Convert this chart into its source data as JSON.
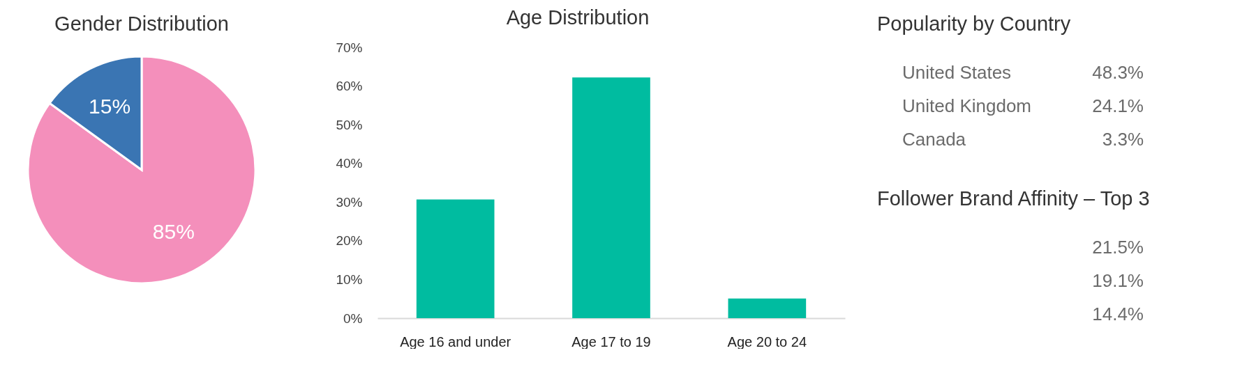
{
  "chart_data": [
    {
      "type": "pie",
      "title": "Gender Distribution",
      "categories": [
        null,
        null
      ],
      "values": [
        85,
        15
      ],
      "colors": [
        "#f48fbb",
        "#3a75b3"
      ],
      "value_labels": [
        "85%",
        "15%"
      ]
    },
    {
      "type": "bar",
      "title": "Age Distribution",
      "categories": [
        "Age 16 and under",
        "Age 17 to 19",
        "Age 20 to 24"
      ],
      "values": [
        30.7,
        62.2,
        5.1
      ],
      "color": "#00bca0",
      "ylim": [
        0,
        70
      ],
      "yticks": [
        {
          "value": 0,
          "label": "0%"
        },
        {
          "value": 10,
          "label": "10%"
        },
        {
          "value": 20,
          "label": "20%"
        },
        {
          "value": 30,
          "label": "30%"
        },
        {
          "value": 40,
          "label": "40%"
        },
        {
          "value": 50,
          "label": "50%"
        },
        {
          "value": 60,
          "label": "60%"
        },
        {
          "value": 70,
          "label": "70%"
        }
      ]
    },
    {
      "type": "other",
      "title": "Popularity by Country",
      "categories": [
        "United States",
        "United Kingdom",
        "Canada"
      ],
      "values": [
        48.3,
        24.1,
        3.3
      ],
      "value_labels": [
        "48.3%",
        "24.1%",
        "3.3%"
      ]
    },
    {
      "type": "other",
      "title": "Follower Brand Affinity – Top 3",
      "categories": [
        null,
        null,
        null
      ],
      "values": [
        21.5,
        19.1,
        14.4
      ],
      "value_labels": [
        "21.5%",
        "19.1%",
        "14.4%"
      ]
    }
  ]
}
